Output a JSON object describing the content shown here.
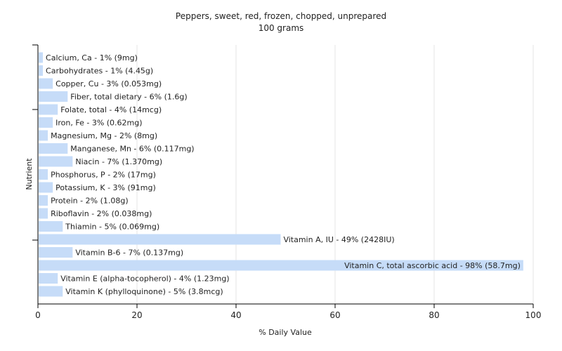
{
  "chart_data": {
    "type": "bar",
    "orientation": "horizontal",
    "title": "Peppers, sweet, red, frozen, chopped, unprepared",
    "subtitle": "100 grams",
    "xlabel": "% Daily Value",
    "ylabel": "Nutrient",
    "xlim": [
      0,
      100
    ],
    "xticks": [
      0,
      20,
      40,
      60,
      80,
      100
    ],
    "grid": true,
    "bar_color": "#c6dcf8",
    "categories": [
      "Calcium, Ca",
      "Carbohydrates",
      "Copper, Cu",
      "Fiber, total dietary",
      "Folate, total",
      "Iron, Fe",
      "Magnesium, Mg",
      "Manganese, Mn",
      "Niacin",
      "Phosphorus, P",
      "Potassium, K",
      "Protein",
      "Riboflavin",
      "Thiamin",
      "Vitamin A, IU",
      "Vitamin B-6",
      "Vitamin C, total ascorbic acid",
      "Vitamin E (alpha-tocopherol)",
      "Vitamin K (phylloquinone)"
    ],
    "values": [
      1,
      1,
      3,
      6,
      4,
      3,
      2,
      6,
      7,
      2,
      3,
      2,
      2,
      5,
      49,
      7,
      98,
      4,
      5
    ],
    "labels": [
      "Calcium, Ca - 1% (9mg)",
      "Carbohydrates - 1% (4.45g)",
      "Copper, Cu - 3% (0.053mg)",
      "Fiber, total dietary - 6% (1.6g)",
      "Folate, total - 4% (14mcg)",
      "Iron, Fe - 3% (0.62mg)",
      "Magnesium, Mg - 2% (8mg)",
      "Manganese, Mn - 6% (0.117mg)",
      "Niacin - 7% (1.370mg)",
      "Phosphorus, P - 2% (17mg)",
      "Potassium, K - 3% (91mg)",
      "Protein - 2% (1.08g)",
      "Riboflavin - 2% (0.038mg)",
      "Thiamin - 5% (0.069mg)",
      "Vitamin A, IU - 49% (2428IU)",
      "Vitamin B-6 - 7% (0.137mg)",
      "Vitamin C, total ascorbic acid - 98% (58.7mg)",
      "Vitamin E (alpha-tocopherol) - 4% (1.23mg)",
      "Vitamin K (phylloquinone) - 5% (3.8mcg)"
    ]
  }
}
